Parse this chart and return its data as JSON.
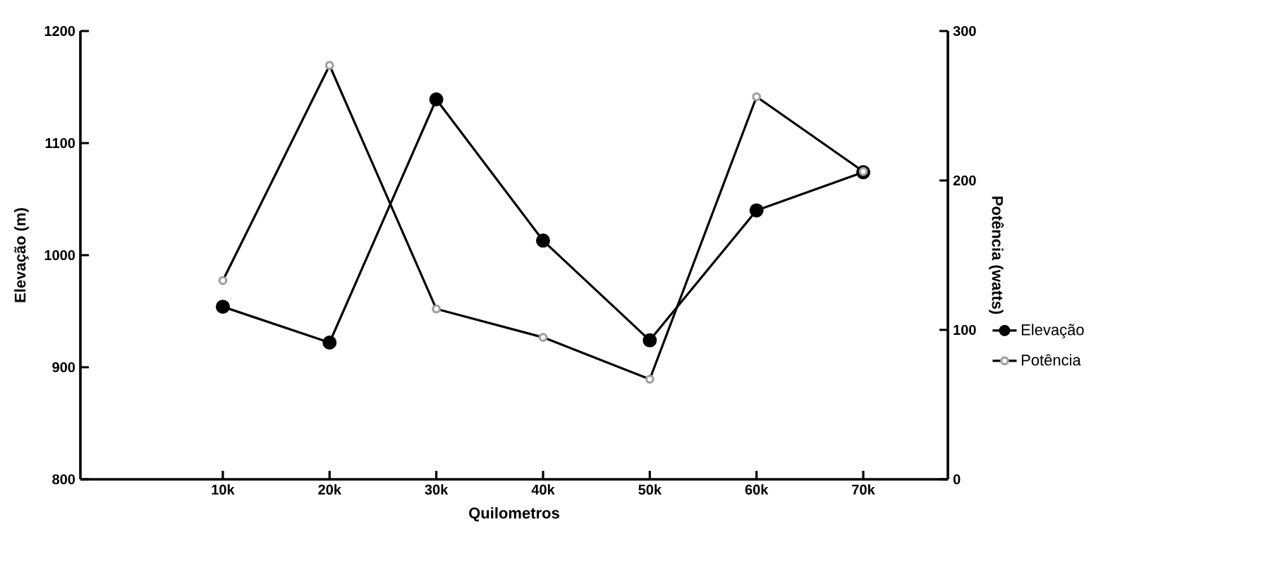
{
  "chart_data": {
    "type": "line",
    "xlabel": "Quilometros",
    "ylabel": "Elevação (m)",
    "y2label": "Potência (watts)",
    "categories": [
      "10k",
      "20k",
      "30k",
      "40k",
      "50k",
      "60k",
      "70k"
    ],
    "series": [
      {
        "name": "Elevação",
        "color": "#000000",
        "values": [
          954,
          922,
          1139,
          1013,
          924,
          1040,
          1074
        ]
      },
      {
        "name": "Potência",
        "color": "#a0a0a0",
        "axis": "y2",
        "values": [
          133,
          277,
          114,
          95,
          67,
          256,
          206
        ]
      }
    ],
    "ylim": [
      800,
      1200
    ],
    "yticks": [
      800,
      900,
      1000,
      1100,
      1200
    ],
    "y2lim": [
      0,
      300
    ],
    "y2ticks": [
      0,
      100,
      200,
      300
    ],
    "marker": "circle",
    "line_style": "solid",
    "grid": false,
    "legend": "right"
  }
}
